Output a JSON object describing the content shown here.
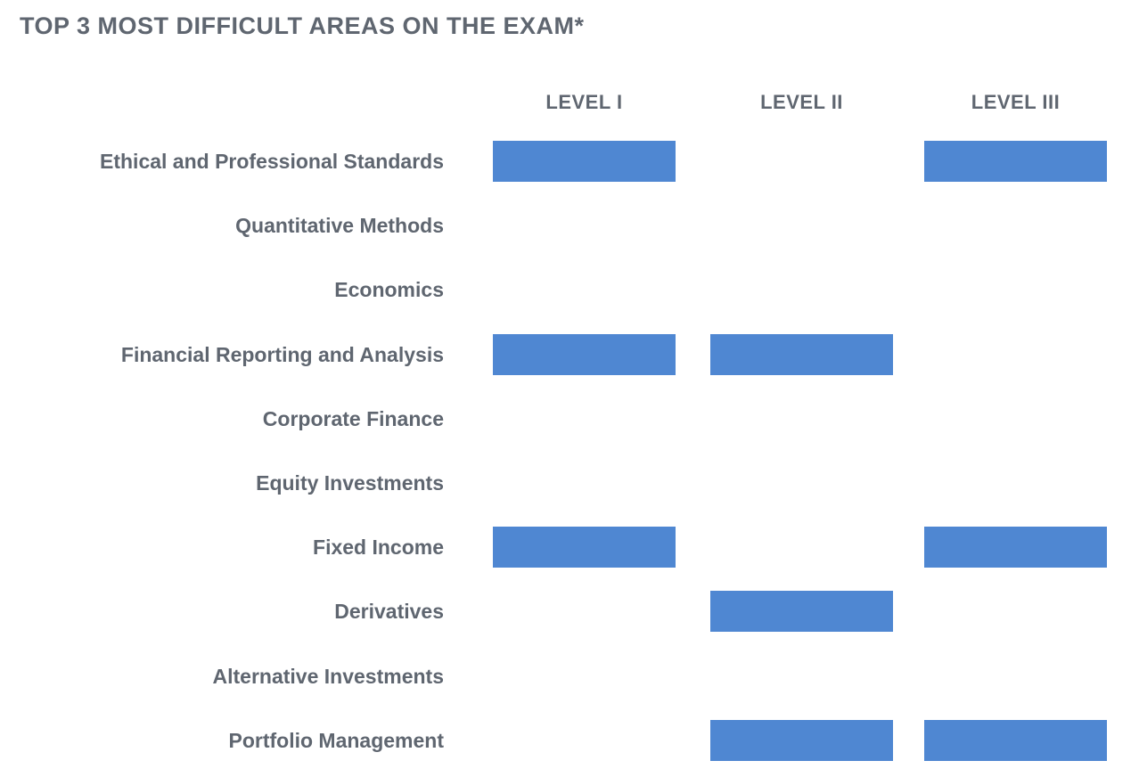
{
  "chart_data": {
    "type": "table",
    "title": "TOP 3 MOST DIFFICULT AREAS ON THE EXAM*",
    "columns": [
      "LEVEL I",
      "LEVEL II",
      "LEVEL III"
    ],
    "rows": [
      {
        "label": "Ethical and Professional Standards",
        "marked": [
          true,
          false,
          true
        ]
      },
      {
        "label": "Quantitative Methods",
        "marked": [
          false,
          false,
          false
        ]
      },
      {
        "label": "Economics",
        "marked": [
          false,
          false,
          false
        ]
      },
      {
        "label": "Financial Reporting and Analysis",
        "marked": [
          true,
          true,
          false
        ]
      },
      {
        "label": "Corporate Finance",
        "marked": [
          false,
          false,
          false
        ]
      },
      {
        "label": "Equity Investments",
        "marked": [
          false,
          false,
          false
        ]
      },
      {
        "label": "Fixed Income",
        "marked": [
          true,
          false,
          true
        ]
      },
      {
        "label": "Derivatives",
        "marked": [
          false,
          true,
          false
        ]
      },
      {
        "label": "Alternative Investments",
        "marked": [
          false,
          false,
          false
        ]
      },
      {
        "label": "Portfolio Management",
        "marked": [
          false,
          true,
          true
        ]
      }
    ],
    "bar_color": "#4f87d2",
    "text_color": "#5f6670"
  }
}
